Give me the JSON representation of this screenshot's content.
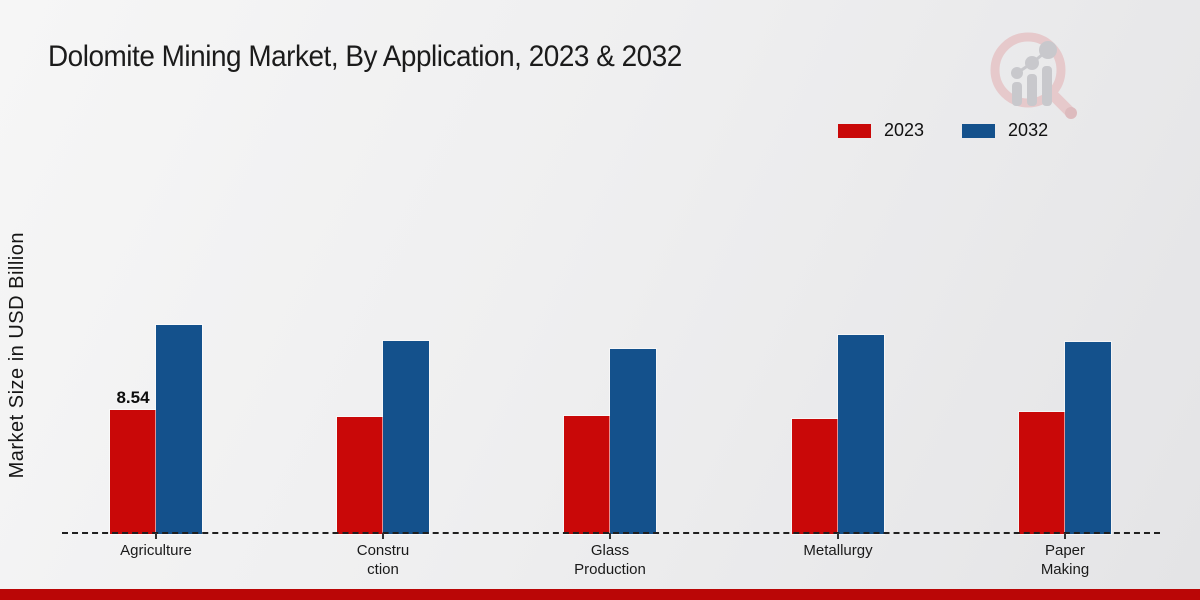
{
  "page": {
    "title": "Dolomite Mining Market, By Application, 2023 & 2032",
    "ylabel": "Market Size in USD Billion"
  },
  "legend": [
    {
      "label": "2023",
      "color": "#c90808"
    },
    {
      "label": "2032",
      "color": "#14518c"
    }
  ],
  "icons": {
    "watermark": "magnifier-bar-chart-logo"
  },
  "colors": {
    "series_2023": "#c90808",
    "series_2032": "#14518c",
    "bottom_bar": "#ba0606",
    "watermark_pink": "#e6c8ca",
    "watermark_gray": "#c7c7cb",
    "baseline": "#1f1f1f"
  },
  "chart_data": {
    "type": "bar",
    "title": "Dolomite Mining Market, By Application, 2023 & 2032",
    "xlabel": "",
    "ylabel": "Market Size in USD Billion",
    "categories": [
      "Agriculture",
      "Construction",
      "Glass Production",
      "Metallurgy",
      "Paper Making"
    ],
    "category_label_lines": [
      [
        "Agriculture"
      ],
      [
        "Constru",
        "ction"
      ],
      [
        "Glass",
        "Production"
      ],
      [
        "Metallurgy"
      ],
      [
        "Paper",
        "Making"
      ]
    ],
    "series": [
      {
        "name": "2023",
        "color": "#c90808",
        "values": [
          8.54,
          8.06,
          8.13,
          7.92,
          8.4
        ]
      },
      {
        "name": "2032",
        "color": "#14518c",
        "values": [
          14.4,
          13.3,
          12.75,
          13.7,
          13.2
        ]
      }
    ],
    "data_labels": [
      {
        "series": "2023",
        "category": "Agriculture",
        "text": "8.54"
      }
    ],
    "ylim": [
      0,
      16
    ],
    "y_axis_ticks_visible": false,
    "grid": false,
    "baseline_style": "dashed",
    "legend_position": "top-right"
  }
}
